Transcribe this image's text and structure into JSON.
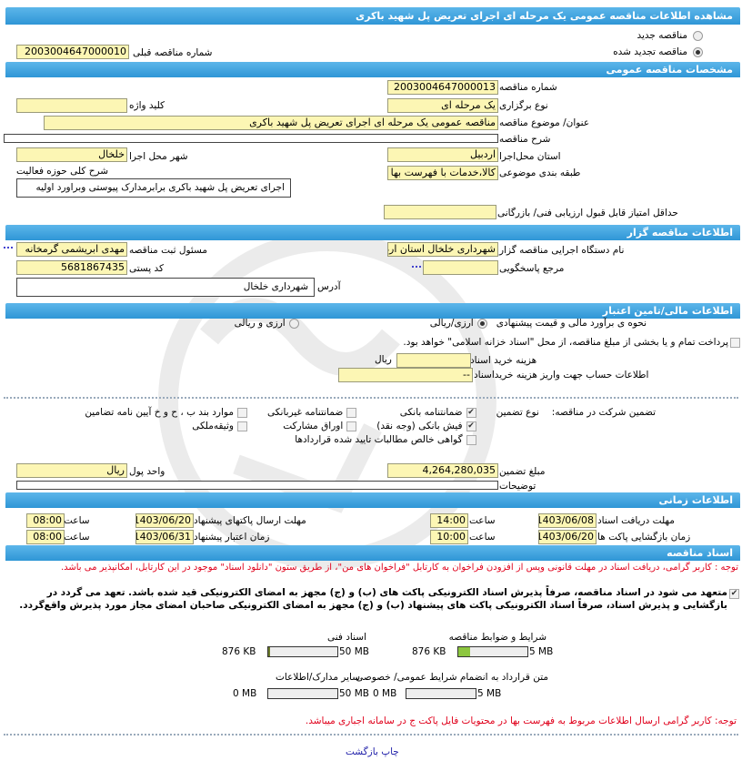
{
  "title": "مشاهده اطلاعات مناقصه  عمومی یک  مرحله ای اجرای تعریض پل شهید باکری",
  "tender_type": {
    "new_label": "مناقصه جدید",
    "renewed_label": "مناقصه تجدید شده",
    "selected": "renewed",
    "previous_number_label": "شماره  مناقصه  قبلی",
    "previous_number": "2003004647000010"
  },
  "general": {
    "header": "مشخصات مناقصه  عمومی",
    "number_label": "شماره  مناقصه",
    "number": "2003004647000013",
    "holding_type_label": "نوع  برگزاری",
    "holding_type": "یک مرحله ای",
    "keyword_label": "کلید واژه",
    "keyword": "",
    "subject_label": "عنوان/ موضوع  مناقصه",
    "subject": "مناقصه عمومی یک مرحله ای اجرای  تعریض پل شهید باکری",
    "description_label": "شرح  مناقصه",
    "description": "",
    "province_label": "استان محل‌اجرا",
    "province": "اردبیل",
    "city_label": "شهر محل اجرا",
    "city": "خلخال",
    "category_label": "طبقه بندی  موضوعی",
    "category": "کالا،خدمات با فهرست بها",
    "activity_label": "شرح کلی حوزه فعالیت",
    "activity": "اجرای  تعریض پل شهید باکری برابرمدارک  پیوستی وبراورد  اولیه",
    "min_score_label": "حداقل  امتیاز قابل قبول  ارزیابی فنی/ بازرگانی",
    "min_score": ""
  },
  "organizer": {
    "header": "اطلاعات مناقصه گزار",
    "org_label": "نام  دستگاه  اجرایی  مناقصه گزار",
    "org": "شهرداری خلخال استان اردبیل",
    "registrar_label": "مسئول  ثبت  مناقصه",
    "registrar": "مهدی ابریشمی گرمخانه",
    "reference_label": "مرجع پاسخگویی",
    "reference": "",
    "postal_label": "کد  پستی",
    "postal": "5681867435",
    "address_label": "آدرس",
    "address": "شهرداری خلخال",
    "more": "..."
  },
  "finance": {
    "header": "اطلاعات مالی/تامین اعتبار",
    "estimate_label": "نحوه ی برآورد مالی و قیمت  پیشنهادی",
    "opt_rial": "ارزی/ریالی",
    "opt_both": "ارزی و ریالی",
    "treasury_label": "پرداخت تمام و یا بخشی از مبلغ  مناقصه، از محل \"اسناد خزانه اسلامی\" خواهد بود.",
    "doc_cost_label": "هزینه خرید اسناد",
    "doc_cost": "",
    "rial": "ریال",
    "account_label": "اطلاعات حساب جهت واریز  هزینه خریداسناد",
    "account": "--",
    "guarantee_label": "تضمین شرکت در مناقصه:",
    "guarantee_type_label": "نوع  تضمین",
    "guarantees": [
      {
        "label": "ضمانتنامه بانکی",
        "checked": true
      },
      {
        "label": "ضمانتنامه غیربانکی",
        "checked": false
      },
      {
        "label": "موارد بند ب ، ح و خ آیین نامه تضامین",
        "checked": false
      },
      {
        "label": "فیش بانکی (وجه نقد)",
        "checked": true
      },
      {
        "label": "اوراق  مشارکت",
        "checked": false
      },
      {
        "label": "وثیقه‌ملکی",
        "checked": false
      },
      {
        "label": "گواهی خالص مطالبات تایید شده قراردادها",
        "checked": false
      }
    ],
    "amount_label": "مبلغ  تضمین",
    "amount": "4,264,280,035",
    "currency_label": "واحد پول",
    "currency": "ریال",
    "notes_label": "توضیحات",
    "notes": ""
  },
  "timing": {
    "header": "اطلاعات زمانی",
    "time_label": "ساعت",
    "doc_deadline_label": "مهلت  دریافت  اسناد",
    "doc_deadline_date": "1403/06/08",
    "doc_deadline_time": "14:00",
    "submit_deadline_label": "مهلت ارسال  پاکتهای  پیشنهاد",
    "submit_deadline_date": "1403/06/20",
    "submit_deadline_time": "08:00",
    "opening_label": "زمان  بازگشایی پاکت ها",
    "opening_date": "1403/06/20",
    "opening_time": "10:00",
    "validity_label": "زمان  اعتبار  پیشنهاد",
    "validity_date": "1403/06/31",
    "validity_time": "08:00"
  },
  "documents": {
    "header": "اسناد مناقصه",
    "notice": "توجه : کاربر گرامی، دریافت اسناد در مهلت قانونی وپس از افزودن فراخوان به کارتابل \"فراخوان های من\"، از طریق ستون \"دانلود اسناد\" موجود در این کارتابل، امکانپذیر می باشد.",
    "commitment": "متعهد می شود در اسناد مناقصه، صرفاً پذیرش اسناد الکترونیکی پاکت های (ب) و (ج) مجهز به امضای الکترونیکی قید شده باشد. تعهد می گردد در بازگشایی و پذیرش اسناد، صرفاً اسناد الکترونیکی پاکت های پیشنهاد (ب) و (ج) مجهز به امضای الکترونیکی صاحبان امضای مجاز مورد پذیرش واقع‌گردد.",
    "commitment_checked": true,
    "files": [
      {
        "label": "شرایط و ضوابط  مناقصه",
        "size": "876 KB",
        "max": "5 MB",
        "fill_percent": 17
      },
      {
        "label": "اسناد فنی",
        "size": "876 KB",
        "max": "50 MB",
        "fill_percent": 2
      },
      {
        "label": "متن قرارداد به  انضمام شرایط عمومی/ خصوصی",
        "size": "0 MB",
        "max": "5 MB",
        "fill_percent": 0
      },
      {
        "label": "سایر مدارک/اطلاعات",
        "size": "0 MB",
        "max": "50 MB",
        "fill_percent": 0
      }
    ],
    "footer_notice": "توجه: کاربر گرامی ارسال اطلاعات مربوط به فهرست بها در محتویات فایل پاکت ج در سامانه  اجباری میباشد."
  },
  "footer": {
    "print": "چاپ",
    "back": "بازگشت"
  },
  "colors": {
    "header": "#3aa0dd",
    "input_bg": "#fcf6b4",
    "notice": "#e0001b",
    "progress": "#8cc63f"
  }
}
